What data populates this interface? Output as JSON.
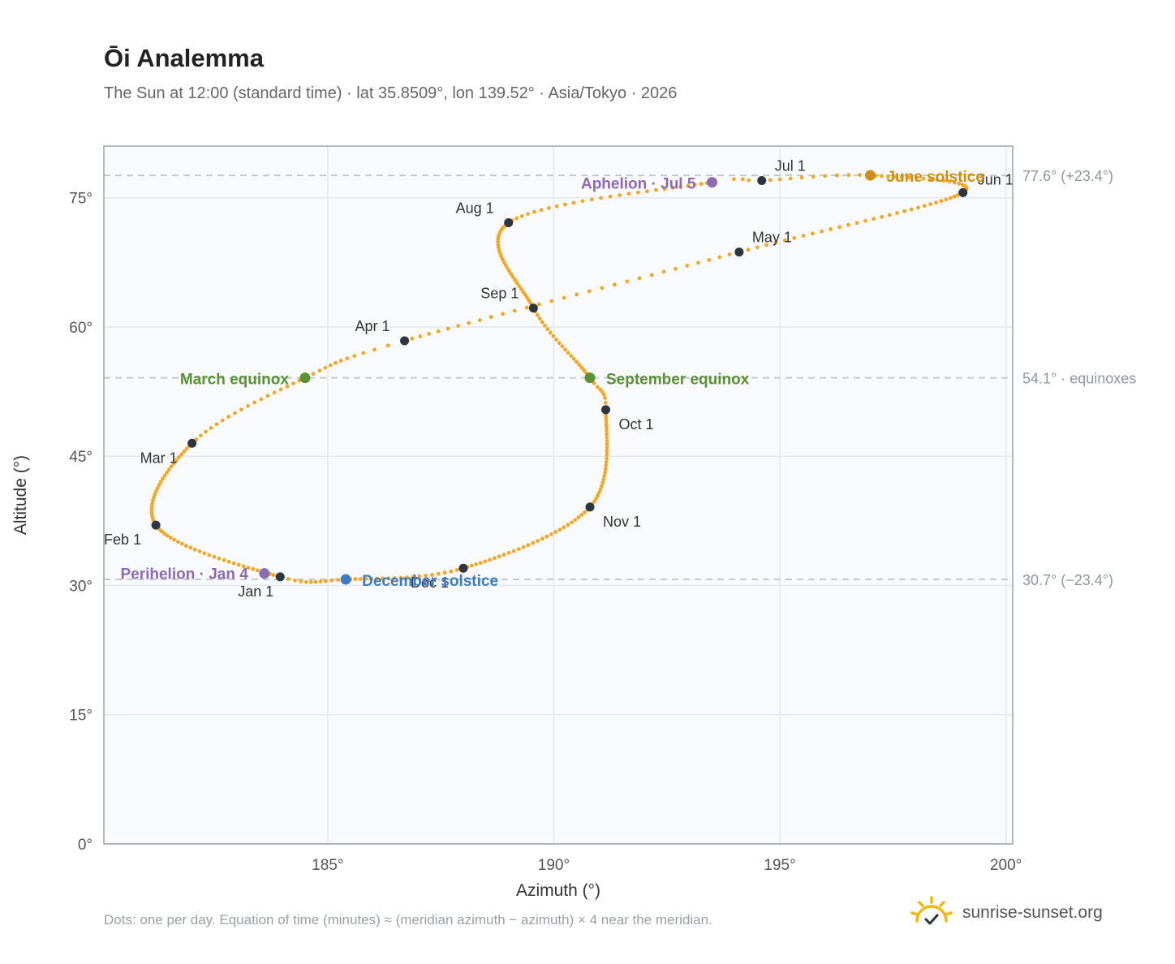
{
  "title": "Ōi Analemma",
  "subtitle": "The Sun at 12:00 (standard time) · lat 35.8509°, lon 139.52° · Asia/Tokyo · 2026",
  "footnote": "Dots: one per day. Equation of time (minutes) ≈ (meridian azimuth − azimuth) × 4 near the meridian.",
  "brand": {
    "text": "sunrise-sunset.org",
    "icon": "sun-check-logo-icon",
    "color": "#f2b70f"
  },
  "chart_data": {
    "type": "scatter",
    "xlabel": "Azimuth (°)",
    "ylabel": "Altitude (°)",
    "xlim": [
      180.05,
      200.15
    ],
    "ylim": [
      0,
      81
    ],
    "x_ticks": [
      185,
      190,
      195,
      200
    ],
    "y_ticks": [
      0,
      15,
      30,
      45,
      60,
      75
    ],
    "x_tick_labels": [
      "185°",
      "190°",
      "195°",
      "200°"
    ],
    "y_tick_labels": [
      "0°",
      "15°",
      "30°",
      "45°",
      "60°",
      "75°"
    ],
    "grid": true,
    "colors": {
      "curve": "#f5a623",
      "month": "#2d3540",
      "equinox": "#5a9132",
      "june": "#d18f0d",
      "december": "#3c7cc1",
      "apsis": "#8c6bb4",
      "reference": "#c2c9d2",
      "plot_bg": "#f8fafc",
      "frame": "#9aa4b0"
    },
    "reference_lines": [
      {
        "y": 77.6,
        "label": "77.6° (+23.4°)"
      },
      {
        "y": 54.1,
        "label": "54.1° · equinoxes"
      },
      {
        "y": 30.7,
        "label": "30.7° (−23.4°)"
      }
    ],
    "curve_keypoints": [
      {
        "doy": 1,
        "az": 183.95,
        "alt": 31.0
      },
      {
        "doy": 32,
        "az": 181.2,
        "alt": 37.0
      },
      {
        "doy": 60,
        "az": 182.0,
        "alt": 46.5
      },
      {
        "doy": 79,
        "az": 184.5,
        "alt": 54.1
      },
      {
        "doy": 91,
        "az": 186.7,
        "alt": 58.4
      },
      {
        "doy": 121,
        "az": 194.1,
        "alt": 68.7
      },
      {
        "doy": 152,
        "az": 199.05,
        "alt": 75.6
      },
      {
        "doy": 172,
        "az": 197.0,
        "alt": 77.6
      },
      {
        "doy": 182,
        "az": 194.6,
        "alt": 77.0
      },
      {
        "doy": 186,
        "az": 193.5,
        "alt": 76.8
      },
      {
        "doy": 213,
        "az": 189.0,
        "alt": 72.1
      },
      {
        "doy": 244,
        "az": 189.55,
        "alt": 62.2
      },
      {
        "doy": 266,
        "az": 190.8,
        "alt": 54.1
      },
      {
        "doy": 274,
        "az": 191.15,
        "alt": 50.4
      },
      {
        "doy": 305,
        "az": 190.8,
        "alt": 39.1
      },
      {
        "doy": 335,
        "az": 188.0,
        "alt": 32.0
      },
      {
        "doy": 355,
        "az": 185.4,
        "alt": 30.7
      },
      {
        "doy": 366,
        "az": 183.95,
        "alt": 31.0
      }
    ],
    "month_markers": [
      {
        "label": "Jan 1",
        "az": 183.95,
        "alt": 31.0
      },
      {
        "label": "Feb 1",
        "az": 181.2,
        "alt": 37.0
      },
      {
        "label": "Mar 1",
        "az": 182.0,
        "alt": 46.5
      },
      {
        "label": "Apr 1",
        "az": 186.7,
        "alt": 58.4
      },
      {
        "label": "May 1",
        "az": 194.1,
        "alt": 68.7
      },
      {
        "label": "Jun 1",
        "az": 199.05,
        "alt": 75.6
      },
      {
        "label": "Jul 1",
        "az": 194.6,
        "alt": 77.0
      },
      {
        "label": "Aug 1",
        "az": 189.0,
        "alt": 72.1
      },
      {
        "label": "Sep 1",
        "az": 189.55,
        "alt": 62.2
      },
      {
        "label": "Oct 1",
        "az": 191.15,
        "alt": 50.4
      },
      {
        "label": "Nov 1",
        "az": 190.8,
        "alt": 39.1
      },
      {
        "label": "Dec 1",
        "az": 188.0,
        "alt": 32.0
      }
    ],
    "events": [
      {
        "label": "March equinox",
        "az": 184.5,
        "alt": 54.1,
        "kind": "equinox"
      },
      {
        "label": "June solstice",
        "az": 197.0,
        "alt": 77.6,
        "kind": "june"
      },
      {
        "label": "September equinox",
        "az": 190.8,
        "alt": 54.1,
        "kind": "equinox"
      },
      {
        "label": "December solstice",
        "az": 185.4,
        "alt": 30.7,
        "kind": "december"
      },
      {
        "label": "Perihelion · Jan 4",
        "az": 183.6,
        "alt": 31.4,
        "kind": "apsis"
      },
      {
        "label": "Aphelion · Jul 5",
        "az": 193.5,
        "alt": 76.8,
        "kind": "apsis"
      }
    ]
  }
}
